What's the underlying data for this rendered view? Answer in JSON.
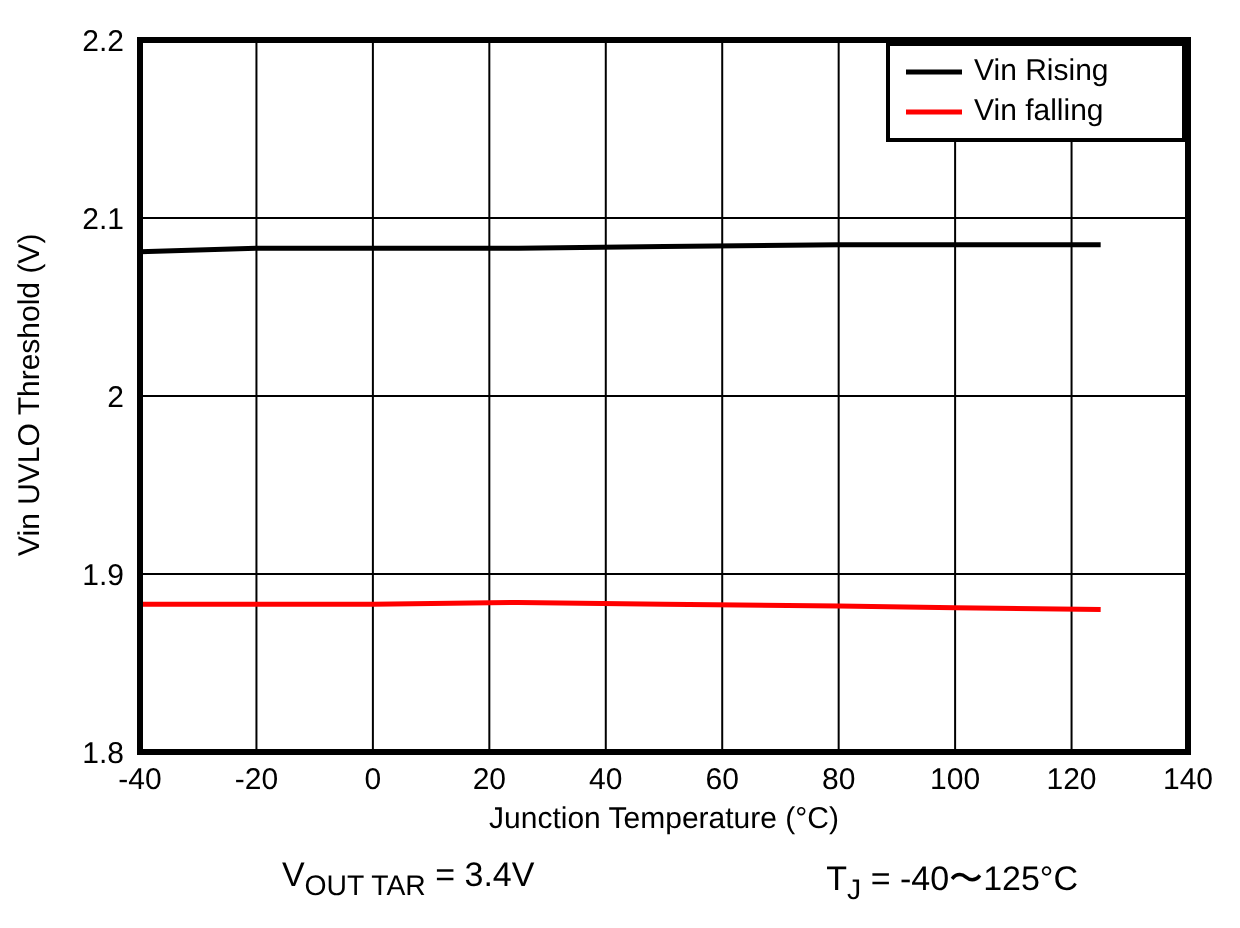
{
  "chart_data": {
    "type": "line",
    "xlabel": "Junction Temperature (°C)",
    "ylabel": "Vin UVLO Threshold (V)",
    "xlim": [
      -40,
      140
    ],
    "xticks": [
      -40,
      -20,
      0,
      20,
      40,
      60,
      80,
      100,
      120,
      140
    ],
    "ylim": [
      1.8,
      2.2
    ],
    "yticks": [
      1.8,
      1.9,
      {
        "value": 2.0,
        "label": "2"
      },
      2.1,
      2.2
    ],
    "grid": true,
    "legend": "top right",
    "marker": "none",
    "line_style": "solid",
    "series": [
      {
        "name": "Vin Rising",
        "color": "#000000",
        "x": [
          -40,
          -20,
          0,
          25,
          50,
          80,
          100,
          125
        ],
        "values": [
          2.081,
          2.083,
          2.083,
          2.083,
          2.084,
          2.085,
          2.085,
          2.085
        ]
      },
      {
        "name": "Vin falling",
        "color": "#ff0000",
        "x": [
          -40,
          -20,
          0,
          25,
          50,
          80,
          100,
          125
        ],
        "values": [
          1.883,
          1.883,
          1.883,
          1.884,
          1.883,
          1.882,
          1.881,
          1.88
        ]
      }
    ],
    "annotations": [
      "V$_{OUT TAR}$ = 3.4V",
      "T$_{J}$ = -40〜125°C"
    ]
  }
}
